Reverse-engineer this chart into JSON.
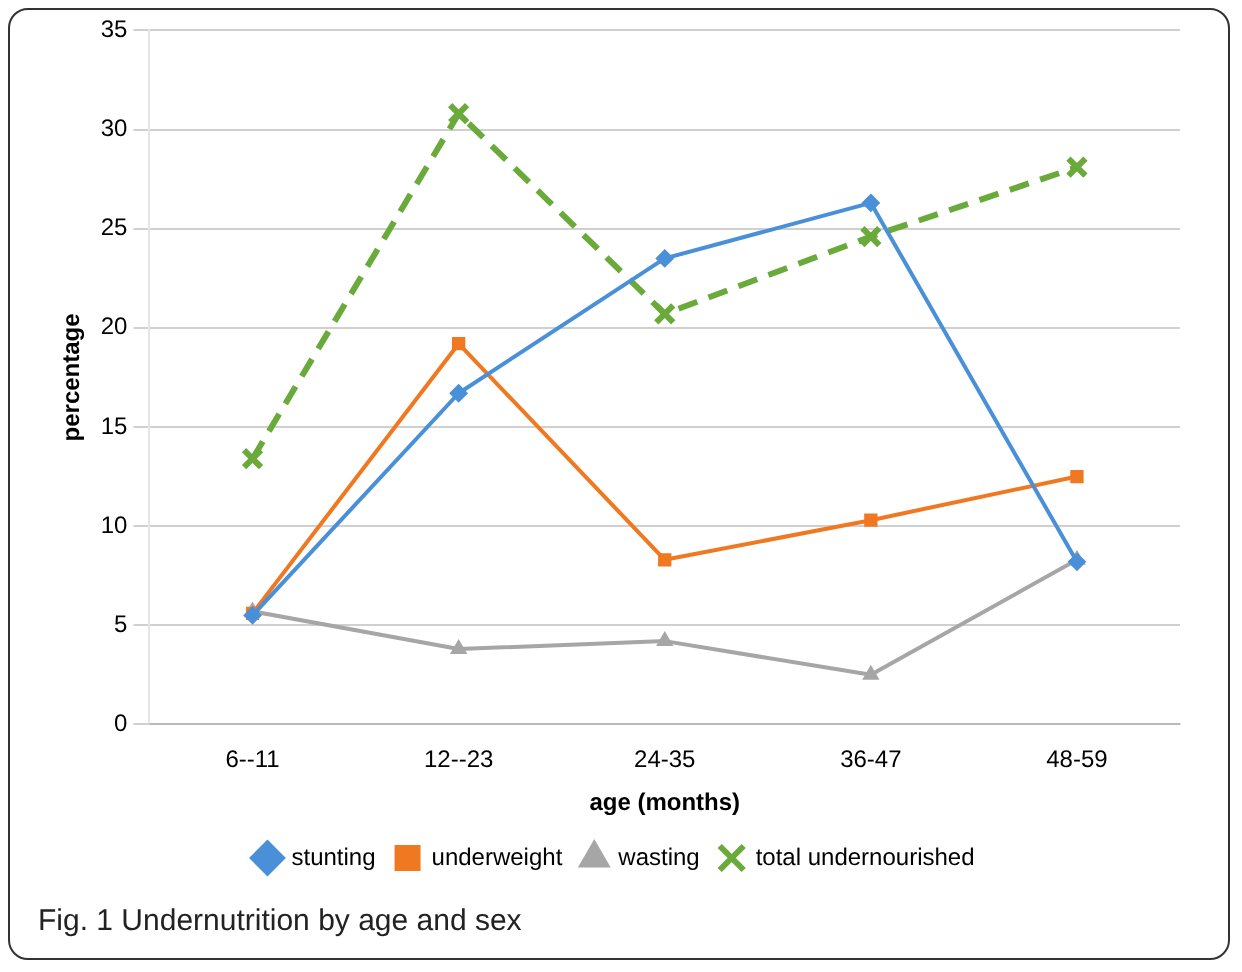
{
  "chart_data": {
    "type": "line",
    "xlabel": "age (months)",
    "ylabel": "percentage",
    "categories": [
      "6--11",
      "12--23",
      "24-35",
      "36-47",
      "48-59"
    ],
    "series": [
      {
        "name": "stunting",
        "color": "#4a90d9",
        "marker": "diamond",
        "values": [
          5.5,
          16.7,
          23.5,
          26.3,
          8.2
        ]
      },
      {
        "name": "underweight",
        "color": "#f07820",
        "marker": "square",
        "values": [
          5.6,
          19.2,
          8.3,
          10.3,
          12.5
        ]
      },
      {
        "name": "wasting",
        "color": "#a6a6a6",
        "marker": "triangle",
        "values": [
          5.7,
          3.8,
          4.2,
          2.5,
          8.3
        ]
      },
      {
        "name": "total undernourished",
        "color": "#6aaa3a",
        "marker": "cross",
        "line_style": "dashed",
        "values": [
          13.4,
          30.8,
          20.7,
          24.6,
          28.1
        ]
      }
    ],
    "ylim": [
      0,
      35
    ],
    "yticks": [
      0,
      5,
      10,
      15,
      20,
      25,
      30,
      35
    ],
    "grid": "y",
    "legend": "bottom",
    "annotations": [
      "Fig. 1 Undernutrition by age and sex"
    ]
  }
}
